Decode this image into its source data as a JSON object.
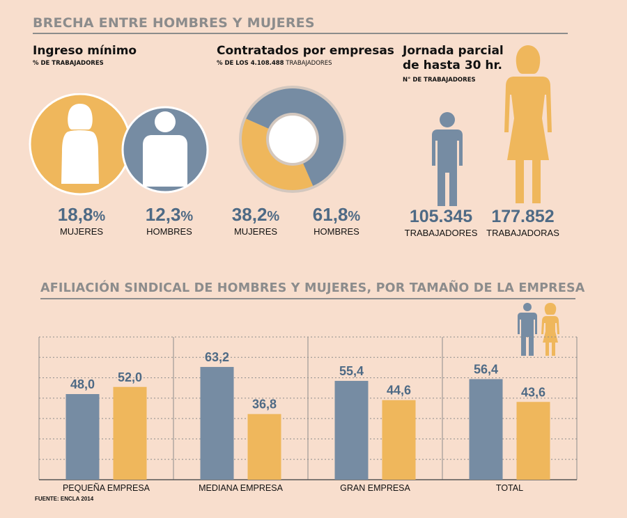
{
  "colors": {
    "female": "#efb75c",
    "male": "#768ca3",
    "title": "#8c8c8c",
    "background": "#f8decd",
    "number": "#4e6a85"
  },
  "header": {
    "title": "BRECHA ENTRE HOMBRES Y MUJERES"
  },
  "panels": {
    "ingreso": {
      "title": "Ingreso mínimo",
      "subtitle": "% DE TRABAJADORES",
      "women": {
        "value": "18,8",
        "unit": "%",
        "label": "MUJERES",
        "icon": "woman-icon"
      },
      "men": {
        "value": "12,3",
        "unit": "%",
        "label": "HOMBRES",
        "icon": "man-icon"
      }
    },
    "contratados": {
      "title": "Contratados por empresas",
      "subtitle_prefix": "% DE LOS ",
      "subtitle_bold": "4.108.488",
      "subtitle_suffix": " TRABAJADORES",
      "women": {
        "value": "38,2",
        "unit": "%",
        "label": "MUJERES"
      },
      "men": {
        "value": "61,8",
        "unit": "%",
        "label": "HOMBRES"
      }
    },
    "jornada": {
      "title_line1": "Jornada parcial",
      "title_line2": "de hasta 30 hr.",
      "subtitle": "N° DE TRABAJADORES",
      "men": {
        "value": "105.345",
        "label": "TRABAJADORES",
        "icon": "man-icon"
      },
      "women": {
        "value": "177.852",
        "label": "TRABAJADORAS",
        "icon": "woman-icon"
      }
    }
  },
  "chart_data": [
    {
      "type": "pie",
      "title": "Contratados por empresas",
      "categories": [
        "MUJERES",
        "HOMBRES"
      ],
      "values": [
        38.2,
        61.8
      ],
      "unit": "%"
    },
    {
      "type": "bar",
      "title": "AFILIACIÓN SINDICAL DE HOMBRES Y MUJERES, POR TAMAÑO DE LA EMPRESA",
      "categories": [
        "PEQUEÑA EMPRESA",
        "MEDIANA EMPRESA",
        "GRAN EMPRESA",
        "TOTAL"
      ],
      "series": [
        {
          "values": [
            48.0,
            63.2,
            55.4,
            56.4
          ],
          "labels": [
            "48,0",
            "63,2",
            "55,4",
            "56,4"
          ],
          "color": "#768ca3"
        },
        {
          "values": [
            52.0,
            36.8,
            44.6,
            43.6
          ],
          "labels": [
            "52,0",
            "36,8",
            "44,6",
            "43,6"
          ],
          "color": "#efb75c"
        }
      ],
      "ylim": [
        0,
        80
      ],
      "grid": true,
      "legend": "top-right icons"
    }
  ],
  "source": "FUENTE: ENCLA 2014"
}
